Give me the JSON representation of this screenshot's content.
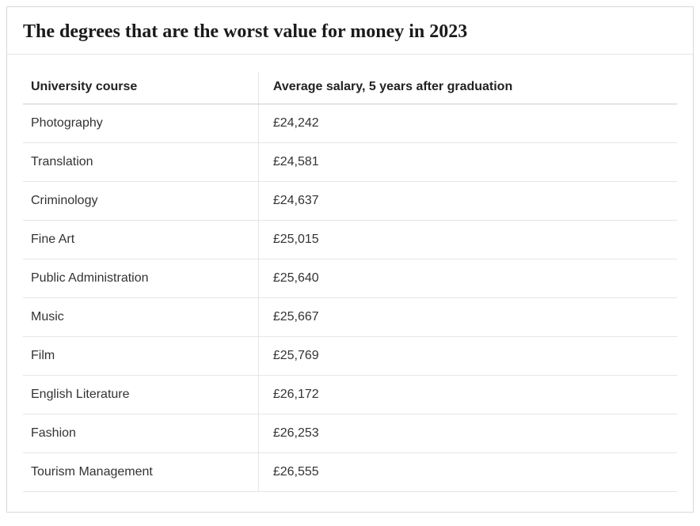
{
  "title": "The degrees that are the worst value for money in 2023",
  "table": {
    "type": "table",
    "columns": [
      {
        "label": "University course",
        "align": "left",
        "width_pct": 36
      },
      {
        "label": "Average salary, 5 years after graduation",
        "align": "left",
        "width_pct": 64
      }
    ],
    "rows": [
      [
        "Photography",
        "£24,242"
      ],
      [
        "Translation",
        "£24,581"
      ],
      [
        "Criminology",
        "£24,637"
      ],
      [
        "Fine Art",
        "£25,015"
      ],
      [
        "Public Administration",
        "£25,640"
      ],
      [
        "Music",
        "£25,667"
      ],
      [
        "Film",
        "£25,769"
      ],
      [
        "English Literature",
        "£26,172"
      ],
      [
        "Fashion",
        "£26,253"
      ],
      [
        "Tourism Management",
        "£26,555"
      ]
    ],
    "border_color": "#d9d9d9",
    "header_border_color": "#cfcfcf",
    "row_border_color": "#e6e6e6",
    "background_color": "#ffffff",
    "title_fontsize": 24,
    "title_font": "serif-bold",
    "header_fontsize": 16,
    "cell_fontsize": 16,
    "text_color": "#333333",
    "header_text_color": "#222222",
    "title_color": "#1a1a1a"
  }
}
